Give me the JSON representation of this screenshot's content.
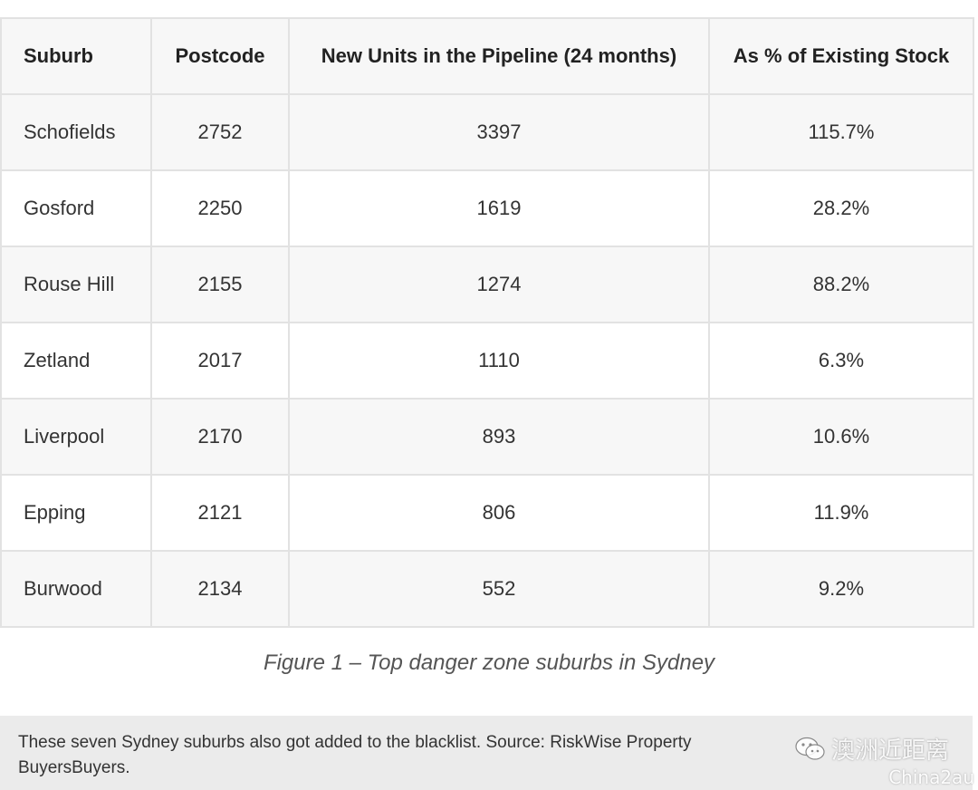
{
  "table": {
    "headers": [
      "Suburb",
      "Postcode",
      "New Units in the Pipeline (24 months)",
      "As % of Existing Stock"
    ],
    "rows": [
      [
        "Schofields",
        "2752",
        "3397",
        "115.7%"
      ],
      [
        "Gosford",
        "2250",
        "1619",
        "28.2%"
      ],
      [
        "Rouse Hill",
        "2155",
        "1274",
        "88.2%"
      ],
      [
        "Zetland",
        "2017",
        "1110",
        "6.3%"
      ],
      [
        "Liverpool",
        "2170",
        "893",
        "10.6%"
      ],
      [
        "Epping",
        "2121",
        "806",
        "11.9%"
      ],
      [
        "Burwood",
        "2134",
        "552",
        "9.2%"
      ]
    ]
  },
  "caption": "Figure 1 – Top danger zone suburbs in Sydney",
  "note": {
    "line1": "These seven Sydney suburbs also got added to the blacklist. Source: RiskWise Property",
    "line2": "BuyersBuyers."
  },
  "watermark": {
    "icon": "wechat-icon",
    "text": "澳洲近距离",
    "sub": "China2au"
  }
}
